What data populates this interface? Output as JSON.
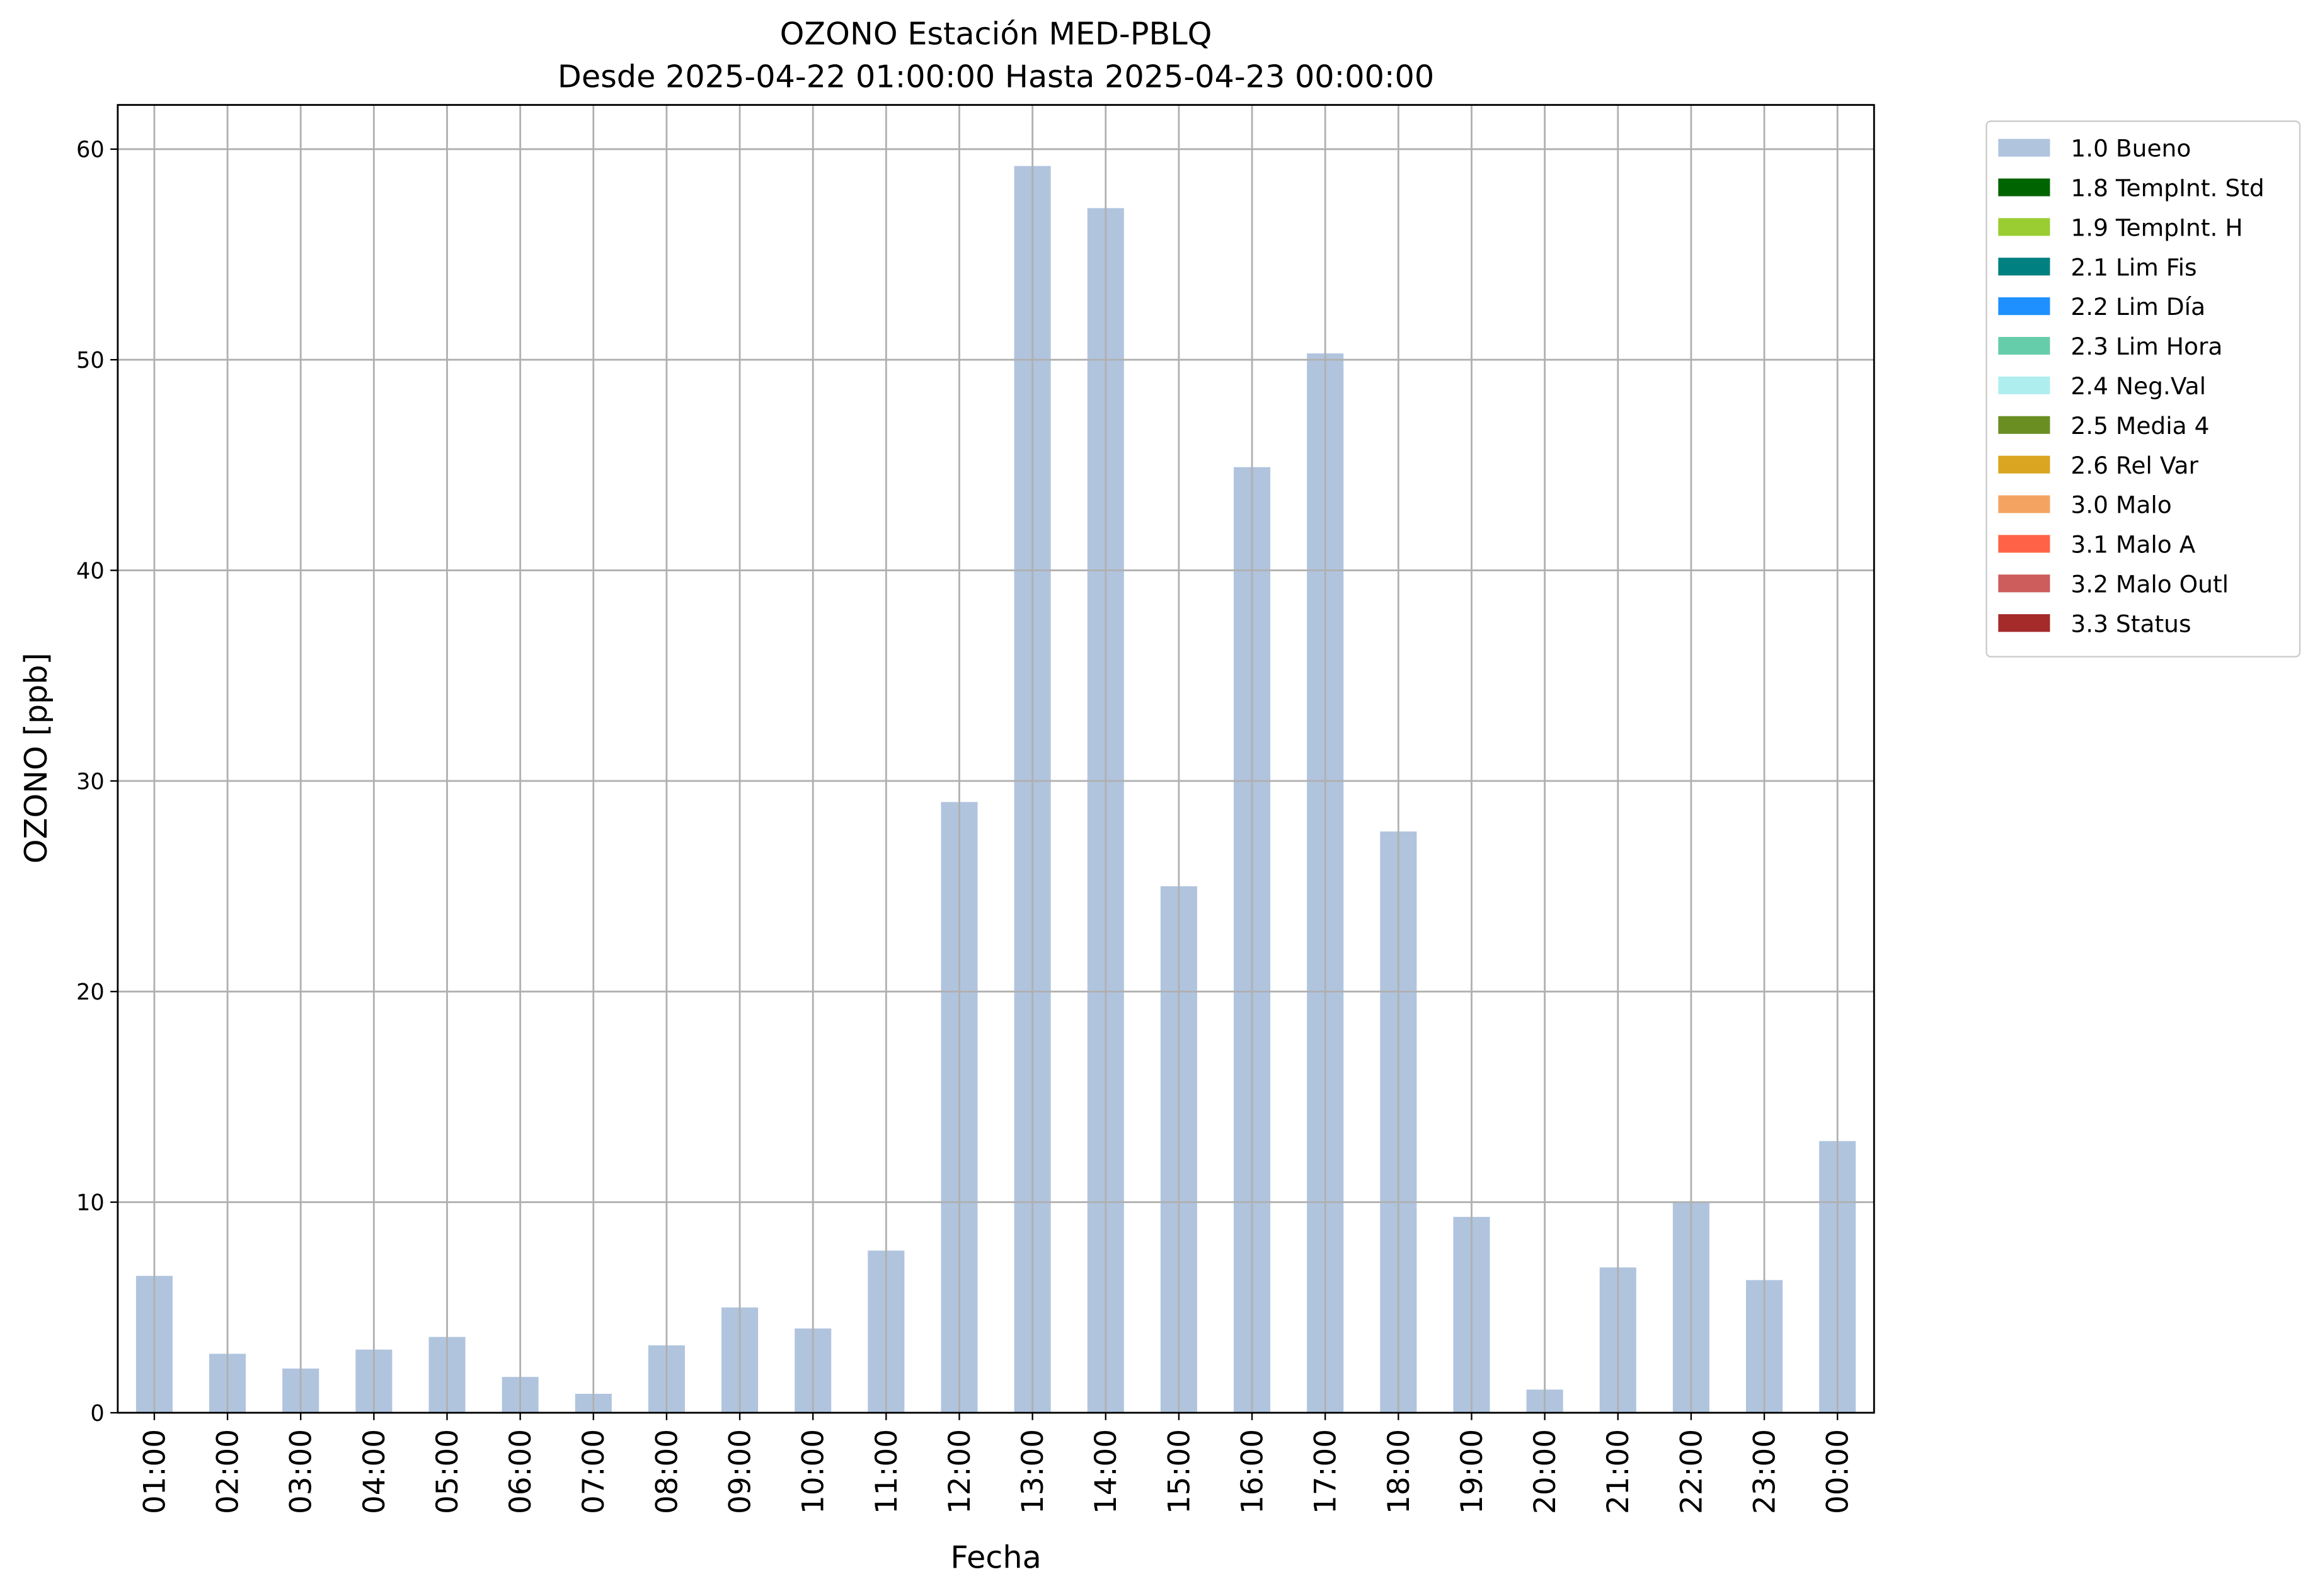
{
  "chart_data": {
    "type": "bar",
    "title": "OZONO Estación MED-PBLQ",
    "subtitle": "Desde 2025-04-22 01:00:00 Hasta 2025-04-23 00:00:00",
    "x_label": "Fecha",
    "y_label": "OZONO [ppb]",
    "categories": [
      "01:00",
      "02:00",
      "03:00",
      "04:00",
      "05:00",
      "06:00",
      "07:00",
      "08:00",
      "09:00",
      "10:00",
      "11:00",
      "12:00",
      "13:00",
      "14:00",
      "15:00",
      "16:00",
      "17:00",
      "18:00",
      "19:00",
      "20:00",
      "21:00",
      "22:00",
      "23:00",
      "00:00"
    ],
    "series": [
      {
        "name": "1.0 Bueno",
        "color": "#b0c4de",
        "values": [
          6.5,
          2.8,
          2.1,
          3.0,
          3.6,
          1.7,
          0.9,
          3.2,
          5.0,
          4.0,
          7.7,
          29.0,
          59.2,
          57.2,
          25.0,
          44.9,
          50.3,
          27.6,
          9.3,
          1.1,
          6.9,
          10.0,
          6.3,
          12.9
        ]
      },
      {
        "name": "1.8 TempInt. Std",
        "color": "#006400",
        "values": [
          null,
          null,
          null,
          null,
          null,
          null,
          null,
          null,
          null,
          null,
          null,
          null,
          null,
          null,
          null,
          null,
          null,
          null,
          null,
          null,
          null,
          null,
          null,
          null
        ]
      },
      {
        "name": "1.9 TempInt. H",
        "color": "#9acd32",
        "values": [
          null,
          null,
          null,
          null,
          null,
          null,
          null,
          null,
          null,
          null,
          null,
          null,
          null,
          null,
          null,
          null,
          null,
          null,
          null,
          null,
          null,
          null,
          null,
          null
        ]
      },
      {
        "name": "2.1 Lim Fis",
        "color": "#008080",
        "values": [
          null,
          null,
          null,
          null,
          null,
          null,
          null,
          null,
          null,
          null,
          null,
          null,
          null,
          null,
          null,
          null,
          null,
          null,
          null,
          null,
          null,
          null,
          null,
          null
        ]
      },
      {
        "name": "2.2 Lim Día",
        "color": "#1e90ff",
        "values": [
          null,
          null,
          null,
          null,
          null,
          null,
          null,
          null,
          null,
          null,
          null,
          null,
          null,
          null,
          null,
          null,
          null,
          null,
          null,
          null,
          null,
          null,
          null,
          null
        ]
      },
      {
        "name": "2.3 Lim Hora",
        "color": "#66cdaa",
        "values": [
          null,
          null,
          null,
          null,
          null,
          null,
          null,
          null,
          null,
          null,
          null,
          null,
          null,
          null,
          null,
          null,
          null,
          null,
          null,
          null,
          null,
          null,
          null,
          null
        ]
      },
      {
        "name": "2.4 Neg.Val",
        "color": "#afeeee",
        "values": [
          null,
          null,
          null,
          null,
          null,
          null,
          null,
          null,
          null,
          null,
          null,
          null,
          null,
          null,
          null,
          null,
          null,
          null,
          null,
          null,
          null,
          null,
          null,
          null
        ]
      },
      {
        "name": "2.5 Media 4",
        "color": "#6b8e23",
        "values": [
          null,
          null,
          null,
          null,
          null,
          null,
          null,
          null,
          null,
          null,
          null,
          null,
          null,
          null,
          null,
          null,
          null,
          null,
          null,
          null,
          null,
          null,
          null,
          null
        ]
      },
      {
        "name": "2.6 Rel Var",
        "color": "#daa520",
        "values": [
          null,
          null,
          null,
          null,
          null,
          null,
          null,
          null,
          null,
          null,
          null,
          null,
          null,
          null,
          null,
          null,
          null,
          null,
          null,
          null,
          null,
          null,
          null,
          null
        ]
      },
      {
        "name": "3.0 Malo",
        "color": "#f4a460",
        "values": [
          null,
          null,
          null,
          null,
          null,
          null,
          null,
          null,
          null,
          null,
          null,
          null,
          null,
          null,
          null,
          null,
          null,
          null,
          null,
          null,
          null,
          null,
          null,
          null
        ]
      },
      {
        "name": "3.1 Malo A",
        "color": "#ff6347",
        "values": [
          null,
          null,
          null,
          null,
          null,
          null,
          null,
          null,
          null,
          null,
          null,
          null,
          null,
          null,
          null,
          null,
          null,
          null,
          null,
          null,
          null,
          null,
          null,
          null
        ]
      },
      {
        "name": "3.2 Malo Outl",
        "color": "#cd5c5c",
        "values": [
          null,
          null,
          null,
          null,
          null,
          null,
          null,
          null,
          null,
          null,
          null,
          null,
          null,
          null,
          null,
          null,
          null,
          null,
          null,
          null,
          null,
          null,
          null,
          null
        ]
      },
      {
        "name": "3.3 Status",
        "color": "#a52a2a",
        "values": [
          null,
          null,
          null,
          null,
          null,
          null,
          null,
          null,
          null,
          null,
          null,
          null,
          null,
          null,
          null,
          null,
          null,
          null,
          null,
          null,
          null,
          null,
          null,
          null
        ]
      }
    ],
    "ylim": [
      0,
      62.1
    ],
    "yticks": [
      0,
      10,
      20,
      30,
      40,
      50,
      60
    ],
    "grid": true,
    "legend_position": "outside-upper-right"
  }
}
